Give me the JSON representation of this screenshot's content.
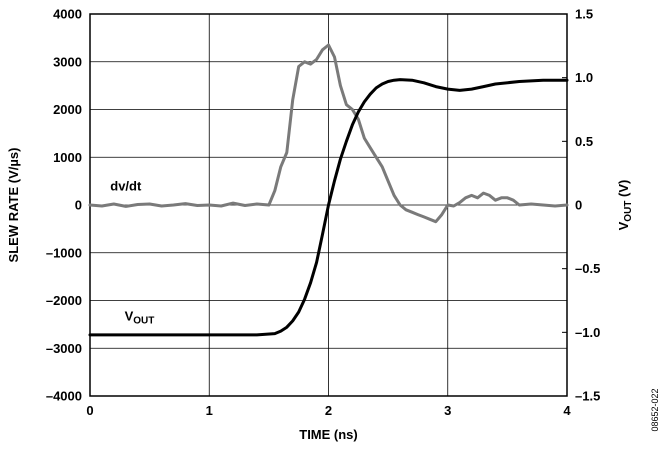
{
  "chart_data": {
    "type": "line",
    "xlabel": "TIME (ns)",
    "ylabel_left": "SLEW RATE (V/µs)",
    "ylabel_right": {
      "main": "V",
      "sub": "OUT",
      "unit": " (V)"
    },
    "xlim": [
      0,
      4
    ],
    "ylim_left": [
      -4000,
      4000
    ],
    "ylim_right": [
      -1.5,
      1.5
    ],
    "x_ticks": [
      0,
      1,
      2,
      3,
      4
    ],
    "x_tick_labels": [
      "0",
      "1",
      "2",
      "3",
      "4"
    ],
    "y_left_ticks": [
      -4000,
      -3000,
      -2000,
      -1000,
      0,
      1000,
      2000,
      3000,
      4000
    ],
    "y_left_tick_labels": [
      "–4000",
      "–3000",
      "–2000",
      "–1000",
      "0",
      "1000",
      "2000",
      "3000",
      "4000"
    ],
    "y_right_ticks": [
      -1.5,
      -1.0,
      -0.5,
      0,
      0.5,
      1.0,
      1.5
    ],
    "y_right_tick_labels": [
      "–1.5",
      "–1.0",
      "–0.5",
      "0",
      "0.5",
      "1.0",
      "1.5"
    ],
    "grid": true,
    "annotations": {
      "dvdt": {
        "text": "dv/dt",
        "x": 0.17,
        "y_left": 300
      },
      "vout": {
        "main": "V",
        "sub": "OUT",
        "x": 0.29,
        "y_left": -2420
      }
    },
    "figure_id": "08652-022",
    "series": [
      {
        "key": "dvdt",
        "axis": "left",
        "color": "#7a7a7a",
        "x": [
          0,
          0.1,
          0.2,
          0.3,
          0.4,
          0.5,
          0.6,
          0.7,
          0.8,
          0.9,
          1.0,
          1.1,
          1.2,
          1.3,
          1.4,
          1.5,
          1.55,
          1.6,
          1.65,
          1.7,
          1.75,
          1.8,
          1.85,
          1.9,
          1.95,
          2.0,
          2.05,
          2.1,
          2.15,
          2.2,
          2.25,
          2.3,
          2.35,
          2.4,
          2.45,
          2.5,
          2.55,
          2.6,
          2.65,
          2.7,
          2.75,
          2.8,
          2.85,
          2.9,
          2.95,
          3.0,
          3.05,
          3.1,
          3.15,
          3.2,
          3.25,
          3.3,
          3.35,
          3.4,
          3.45,
          3.5,
          3.55,
          3.6,
          3.7,
          3.8,
          3.9,
          4.0
        ],
        "y": [
          0,
          -20,
          20,
          -30,
          10,
          20,
          -20,
          0,
          30,
          -10,
          0,
          -20,
          40,
          -10,
          20,
          0,
          300,
          800,
          1100,
          2200,
          2900,
          3000,
          2950,
          3050,
          3250,
          3350,
          3100,
          2500,
          2100,
          2000,
          1800,
          1400,
          1200,
          1000,
          800,
          500,
          200,
          0,
          -100,
          -150,
          -200,
          -250,
          -300,
          -350,
          -200,
          0,
          -20,
          50,
          150,
          200,
          150,
          250,
          200,
          100,
          150,
          150,
          100,
          0,
          20,
          0,
          -20,
          0
        ]
      },
      {
        "key": "vout",
        "axis": "right",
        "color": "#000000",
        "x": [
          0,
          0.5,
          1.0,
          1.4,
          1.55,
          1.6,
          1.65,
          1.7,
          1.75,
          1.8,
          1.85,
          1.9,
          1.95,
          2.0,
          2.05,
          2.1,
          2.15,
          2.2,
          2.25,
          2.3,
          2.35,
          2.4,
          2.45,
          2.5,
          2.55,
          2.6,
          2.7,
          2.8,
          2.9,
          3.0,
          3.1,
          3.2,
          3.3,
          3.4,
          3.6,
          3.8,
          4.0
        ],
        "y": [
          -1.02,
          -1.02,
          -1.02,
          -1.02,
          -1.01,
          -0.99,
          -0.96,
          -0.91,
          -0.84,
          -0.74,
          -0.61,
          -0.45,
          -0.23,
          0.0,
          0.19,
          0.36,
          0.5,
          0.63,
          0.73,
          0.81,
          0.87,
          0.92,
          0.95,
          0.97,
          0.98,
          0.985,
          0.98,
          0.96,
          0.93,
          0.91,
          0.9,
          0.91,
          0.93,
          0.95,
          0.97,
          0.98,
          0.98
        ]
      }
    ]
  }
}
